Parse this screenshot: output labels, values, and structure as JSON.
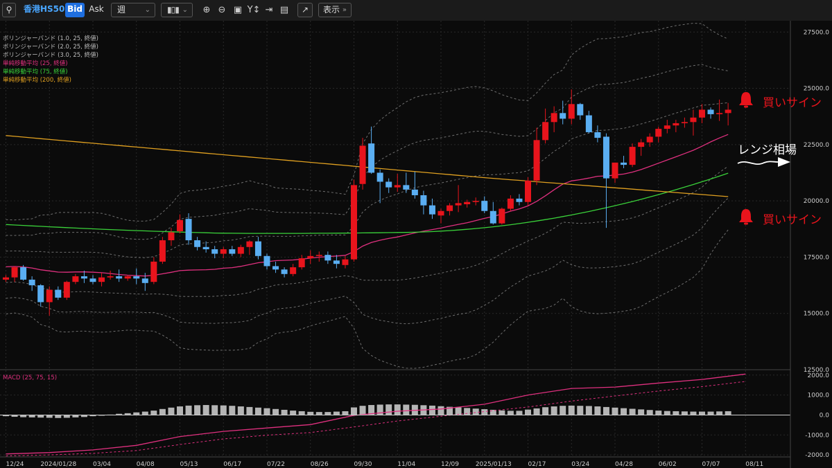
{
  "toolbar": {
    "symbol": "香港HS50",
    "bid_label": "Bid",
    "ask_label": "Ask",
    "timeframe": "週",
    "display_label": "表示"
  },
  "legend": [
    {
      "label": "ボリンジャーバンド (1.0, 25, 終値)",
      "color": "#bdbdbd"
    },
    {
      "label": "ボリンジャーバンド (2.0, 25, 終値)",
      "color": "#bdbdbd"
    },
    {
      "label": "ボリンジャーバンド (3.0, 25, 終値)",
      "color": "#bdbdbd"
    },
    {
      "label": "単純移動平均 (25, 終値)",
      "color": "#e0307f"
    },
    {
      "label": "単純移動平均 (75, 終値)",
      "color": "#3ad23a"
    },
    {
      "label": "単純移動平均 (200, 終値)",
      "color": "#e0a020"
    }
  ],
  "macd_label": "MACD (25, 75, 15)",
  "annotations": {
    "buy_signal_1": "買いサイン",
    "buy_signal_2": "買いサイン",
    "range_label": "レンジ相場"
  },
  "colors": {
    "up": "#e8141c",
    "down": "#5aaef2",
    "accent": "#1f6fe0"
  },
  "chart_data": {
    "type": "candlestick",
    "main_axis": {
      "ylim": [
        12500,
        28000
      ],
      "ticks": [
        12500,
        15000,
        17500,
        20000,
        22500,
        25000,
        27500
      ],
      "tick_labels": [
        "12500.0",
        "15000.0",
        "17500.0",
        "20000.0",
        "22500.0",
        "25000.0",
        "27500.0"
      ]
    },
    "macd_axis": {
      "ylim": [
        -2100,
        2200
      ],
      "ticks": [
        -2000,
        -1000,
        0,
        1000,
        2000
      ],
      "tick_labels": [
        "-2000.0",
        "-1000.0",
        "0.0",
        "1000.0",
        "2000.0"
      ]
    },
    "x_tick_labels": [
      "12/24",
      "2024/01/28",
      "03/04",
      "04/08",
      "05/13",
      "06/17",
      "07/22",
      "08/26",
      "09/30",
      "11/04",
      "12/09",
      "2025/01/13",
      "02/17",
      "03/24",
      "04/28",
      "06/02",
      "07/07",
      "08/11"
    ],
    "week_index_of_ticks": [
      0,
      5,
      10,
      15,
      20,
      25,
      30,
      35,
      40,
      45,
      50,
      55,
      60,
      65,
      70,
      75,
      80,
      85
    ],
    "candles": [
      [
        16500,
        16700,
        16400,
        16600
      ],
      [
        16600,
        17100,
        16400,
        17050
      ],
      [
        17050,
        17150,
        16450,
        16500
      ],
      [
        16500,
        16650,
        16000,
        16250
      ],
      [
        16250,
        16300,
        15300,
        15500
      ],
      [
        15500,
        16200,
        14900,
        16050
      ],
      [
        16050,
        16200,
        15600,
        15700
      ],
      [
        15700,
        16450,
        15600,
        16400
      ],
      [
        16400,
        16750,
        16300,
        16650
      ],
      [
        16650,
        16900,
        16350,
        16550
      ],
      [
        16550,
        16700,
        16300,
        16400
      ],
      [
        16400,
        16800,
        16200,
        16600
      ],
      [
        16600,
        16900,
        16500,
        16650
      ],
      [
        16650,
        16950,
        16400,
        16550
      ],
      [
        16550,
        16700,
        16450,
        16650
      ],
      [
        16650,
        17000,
        16300,
        16550
      ],
      [
        16550,
        16800,
        16000,
        16350
      ],
      [
        16400,
        17500,
        16300,
        17300
      ],
      [
        17300,
        18400,
        17200,
        18250
      ],
      [
        18250,
        18800,
        18000,
        18600
      ],
      [
        18650,
        19400,
        18550,
        19150
      ],
      [
        19200,
        19450,
        18050,
        18250
      ],
      [
        18250,
        18400,
        17800,
        17950
      ],
      [
        17950,
        18200,
        17700,
        17850
      ],
      [
        17850,
        18000,
        17450,
        17650
      ],
      [
        17650,
        17950,
        17450,
        17850
      ],
      [
        17850,
        18000,
        17550,
        17650
      ],
      [
        17650,
        18050,
        17500,
        17950
      ],
      [
        17950,
        18250,
        17600,
        18200
      ],
      [
        18200,
        18400,
        17400,
        17550
      ],
      [
        17550,
        17650,
        16950,
        17100
      ],
      [
        17100,
        17300,
        16800,
        16950
      ],
      [
        16950,
        17050,
        16600,
        16750
      ],
      [
        16750,
        17200,
        16650,
        17050
      ],
      [
        17050,
        17600,
        16950,
        17450
      ],
      [
        17450,
        17800,
        17200,
        17550
      ],
      [
        17550,
        17750,
        17300,
        17600
      ],
      [
        17600,
        17750,
        17200,
        17350
      ],
      [
        17350,
        17600,
        17000,
        17200
      ],
      [
        17150,
        17550,
        17000,
        17400
      ],
      [
        17400,
        20950,
        17300,
        20700
      ],
      [
        20750,
        22800,
        20500,
        22450
      ],
      [
        22550,
        23300,
        21200,
        21250
      ],
      [
        21250,
        21400,
        19900,
        20850
      ],
      [
        20850,
        21000,
        20350,
        20600
      ],
      [
        20600,
        21200,
        20400,
        20700
      ],
      [
        20700,
        21250,
        20350,
        20500
      ],
      [
        20500,
        21300,
        20100,
        20250
      ],
      [
        20250,
        20450,
        19400,
        19800
      ],
      [
        19800,
        20100,
        19200,
        19400
      ],
      [
        19350,
        19650,
        19000,
        19550
      ],
      [
        19550,
        19900,
        19350,
        19800
      ],
      [
        19800,
        20700,
        19500,
        19900
      ],
      [
        19850,
        20050,
        19700,
        19950
      ],
      [
        19950,
        20150,
        19800,
        20000
      ],
      [
        20000,
        20200,
        19450,
        19550
      ],
      [
        19550,
        19950,
        18950,
        19000
      ],
      [
        19000,
        19700,
        18950,
        19650
      ],
      [
        19650,
        20250,
        19550,
        20100
      ],
      [
        20100,
        20300,
        19800,
        19950
      ],
      [
        19950,
        21050,
        19800,
        20900
      ],
      [
        20900,
        23250,
        20700,
        22700
      ],
      [
        22700,
        24100,
        22550,
        23500
      ],
      [
        23500,
        24200,
        23050,
        23900
      ],
      [
        23900,
        24450,
        23400,
        23650
      ],
      [
        23650,
        24950,
        23400,
        24300
      ],
      [
        24300,
        24350,
        23600,
        23800
      ],
      [
        23800,
        24000,
        23000,
        23050
      ],
      [
        23050,
        23350,
        22600,
        22800
      ],
      [
        22850,
        23000,
        18800,
        21000
      ],
      [
        21000,
        21700,
        20800,
        21700
      ],
      [
        21700,
        22000,
        21450,
        21600
      ],
      [
        21600,
        22550,
        21500,
        22400
      ],
      [
        22400,
        22750,
        22000,
        22600
      ],
      [
        22600,
        23000,
        22400,
        22850
      ],
      [
        22850,
        23300,
        22600,
        23200
      ],
      [
        23200,
        23600,
        23000,
        23350
      ],
      [
        23350,
        23600,
        23050,
        23450
      ],
      [
        23450,
        23700,
        23250,
        23500
      ],
      [
        23500,
        24050,
        22900,
        23700
      ],
      [
        23700,
        24300,
        23450,
        24050
      ],
      [
        24050,
        24150,
        23650,
        23850
      ],
      [
        23850,
        24500,
        23550,
        23900
      ],
      [
        23900,
        24350,
        23350,
        24050
      ]
    ],
    "macd_line": [
      [
        0,
        -1950
      ],
      [
        5,
        -1880
      ],
      [
        10,
        -1750
      ],
      [
        15,
        -1520
      ],
      [
        20,
        -1080
      ],
      [
        25,
        -820
      ],
      [
        30,
        -650
      ],
      [
        35,
        -480
      ],
      [
        40,
        -20
      ],
      [
        45,
        190
      ],
      [
        50,
        300
      ],
      [
        55,
        540
      ],
      [
        60,
        1000
      ],
      [
        65,
        1330
      ],
      [
        70,
        1400
      ],
      [
        75,
        1600
      ],
      [
        80,
        1780
      ],
      [
        85,
        2050
      ]
    ],
    "macd_signal": [
      [
        0,
        -2050
      ],
      [
        5,
        -2000
      ],
      [
        10,
        -1920
      ],
      [
        15,
        -1780
      ],
      [
        20,
        -1480
      ],
      [
        25,
        -1200
      ],
      [
        30,
        -1010
      ],
      [
        35,
        -880
      ],
      [
        40,
        -600
      ],
      [
        45,
        -300
      ],
      [
        50,
        -60
      ],
      [
        55,
        170
      ],
      [
        60,
        400
      ],
      [
        65,
        700
      ],
      [
        70,
        950
      ],
      [
        75,
        1200
      ],
      [
        80,
        1420
      ],
      [
        85,
        1680
      ]
    ],
    "macd_histogram": [
      -60,
      -90,
      -110,
      -120,
      -130,
      -140,
      -150,
      -140,
      -120,
      -100,
      -60,
      -20,
      20,
      60,
      90,
      130,
      170,
      220,
      300,
      370,
      430,
      470,
      490,
      500,
      490,
      480,
      460,
      430,
      400,
      370,
      340,
      300,
      260,
      220,
      190,
      160,
      150,
      150,
      170,
      190,
      380,
      460,
      500,
      520,
      530,
      530,
      520,
      510,
      490,
      470,
      440,
      410,
      380,
      350,
      320,
      290,
      260,
      230,
      210,
      210,
      270,
      330,
      390,
      430,
      460,
      470,
      460,
      450,
      430,
      400,
      370,
      340,
      310,
      280,
      250,
      220,
      200,
      190,
      180,
      170,
      170,
      170,
      180,
      190
    ]
  }
}
